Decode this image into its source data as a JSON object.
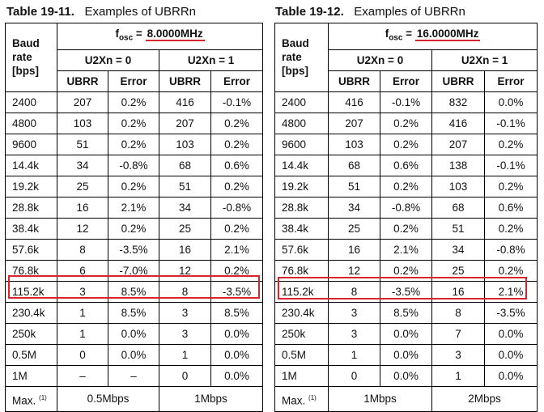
{
  "tables": [
    {
      "number": "Table 19-11.",
      "title": "Examples of UBRRn",
      "fosc_label": "f",
      "fosc_sub": "osc",
      "fosc_eq": " = ",
      "fosc_value": "8.0000MHz",
      "baud_header": [
        "Baud",
        "rate",
        "[bps]"
      ],
      "mode_headers": [
        "U2Xn = 0",
        "U2Xn = 1"
      ],
      "sub_headers": [
        "UBRR",
        "Error",
        "UBRR",
        "Error"
      ],
      "rows": [
        [
          "2400",
          "207",
          "0.2%",
          "416",
          "-0.1%"
        ],
        [
          "4800",
          "103",
          "0.2%",
          "207",
          "0.2%"
        ],
        [
          "9600",
          "51",
          "0.2%",
          "103",
          "0.2%"
        ],
        [
          "14.4k",
          "34",
          "-0.8%",
          "68",
          "0.6%"
        ],
        [
          "19.2k",
          "25",
          "0.2%",
          "51",
          "0.2%"
        ],
        [
          "28.8k",
          "16",
          "2.1%",
          "34",
          "-0.8%"
        ],
        [
          "38.4k",
          "12",
          "0.2%",
          "25",
          "0.2%"
        ],
        [
          "57.6k",
          "8",
          "-3.5%",
          "16",
          "2.1%"
        ],
        [
          "76.8k",
          "6",
          "-7.0%",
          "12",
          "0.2%"
        ],
        [
          "115.2k",
          "3",
          "8.5%",
          "8",
          "-3.5%"
        ],
        [
          "230.4k",
          "1",
          "8.5%",
          "3",
          "8.5%"
        ],
        [
          "250k",
          "1",
          "0.0%",
          "3",
          "0.0%"
        ],
        [
          "0.5M",
          "0",
          "0.0%",
          "1",
          "0.0%"
        ],
        [
          "1M",
          "–",
          "–",
          "0",
          "0.0%"
        ]
      ],
      "max_label": "Max.",
      "max_note": "(1)",
      "max_values": [
        "0.5Mbps",
        "1Mbps"
      ],
      "highlighted_row": "115.2k"
    },
    {
      "number": "Table 19-12.",
      "title": "Examples of UBRRn",
      "fosc_label": "f",
      "fosc_sub": "osc",
      "fosc_eq": " = ",
      "fosc_value": "16.0000MHz",
      "baud_header": [
        "Baud",
        "rate",
        "[bps]"
      ],
      "mode_headers": [
        "U2Xn = 0",
        "U2Xn = 1"
      ],
      "sub_headers": [
        "UBRR",
        "Error",
        "UBRR",
        "Error"
      ],
      "rows": [
        [
          "2400",
          "416",
          "-0.1%",
          "832",
          "0.0%"
        ],
        [
          "4800",
          "207",
          "0.2%",
          "416",
          "-0.1%"
        ],
        [
          "9600",
          "103",
          "0.2%",
          "207",
          "0.2%"
        ],
        [
          "14.4k",
          "68",
          "0.6%",
          "138",
          "-0.1%"
        ],
        [
          "19.2k",
          "51",
          "0.2%",
          "103",
          "0.2%"
        ],
        [
          "28.8k",
          "34",
          "-0.8%",
          "68",
          "0.6%"
        ],
        [
          "38.4k",
          "25",
          "0.2%",
          "51",
          "0.2%"
        ],
        [
          "57.6k",
          "16",
          "2.1%",
          "34",
          "-0.8%"
        ],
        [
          "76.8k",
          "12",
          "0.2%",
          "25",
          "0.2%"
        ],
        [
          "115.2k",
          "8",
          "-3.5%",
          "16",
          "2.1%"
        ],
        [
          "230.4k",
          "3",
          "8.5%",
          "8",
          "-3.5%"
        ],
        [
          "250k",
          "3",
          "0.0%",
          "7",
          "0.0%"
        ],
        [
          "0.5M",
          "1",
          "0.0%",
          "3",
          "0.0%"
        ],
        [
          "1M",
          "0",
          "0.0%",
          "1",
          "0.0%"
        ]
      ],
      "max_label": "Max.",
      "max_note": "(1)",
      "max_values": [
        "1Mbps",
        "2Mbps"
      ],
      "highlighted_row": "115.2k"
    }
  ],
  "colors": {
    "highlight": "#d9232d",
    "border": "#000000",
    "background": "#ffffff"
  }
}
